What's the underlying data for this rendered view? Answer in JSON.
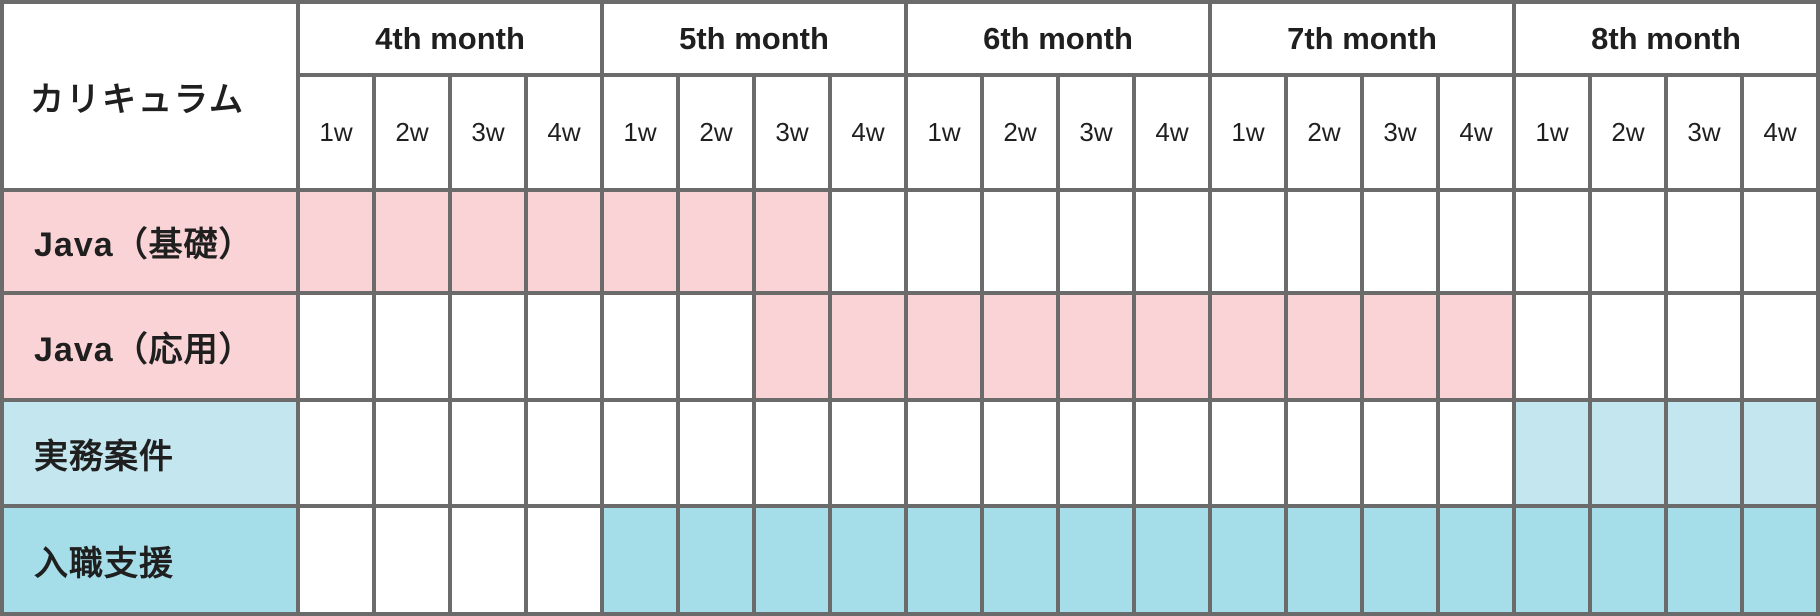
{
  "colors": {
    "pink": "#fad3d6",
    "light_blue": "#c3e6ef",
    "blue": "#a5dde9",
    "border": "#6b6b6b",
    "text": "#1f1f1f",
    "cell_bg": "#ffffff"
  },
  "chart_data": {
    "type": "table",
    "subtype": "gantt-schedule",
    "corner_label": "カリキュラム",
    "months": [
      "4th month",
      "5th month",
      "6th month",
      "7th month",
      "8th month"
    ],
    "week_labels": [
      "1w",
      "2w",
      "3w",
      "4w"
    ],
    "weeks_per_month": 4,
    "total_week_columns": 20,
    "rows": [
      {
        "key": "java-basic",
        "label": "Java（基礎）",
        "fill": "pink",
        "start": "4th month 1w",
        "end": "5th month 3w",
        "filled_weeks": [
          1,
          1,
          1,
          1,
          1,
          1,
          1,
          0,
          0,
          0,
          0,
          0,
          0,
          0,
          0,
          0,
          0,
          0,
          0,
          0
        ]
      },
      {
        "key": "java-advanced",
        "label": "Java（応用）",
        "fill": "pink",
        "start": "5th month 3w",
        "end": "7th month 4w",
        "filled_weeks": [
          0,
          0,
          0,
          0,
          0,
          0,
          1,
          1,
          1,
          1,
          1,
          1,
          1,
          1,
          1,
          1,
          0,
          0,
          0,
          0
        ]
      },
      {
        "key": "practical-projects",
        "label": "実務案件",
        "fill": "light_blue",
        "start": "8th month 1w",
        "end": "8th month 4w",
        "filled_weeks": [
          0,
          0,
          0,
          0,
          0,
          0,
          0,
          0,
          0,
          0,
          0,
          0,
          0,
          0,
          0,
          0,
          1,
          1,
          1,
          1
        ]
      },
      {
        "key": "job-entry-support",
        "label": "入職支援",
        "fill": "blue",
        "start": "5th month 1w",
        "end": "8th month 4w",
        "filled_weeks": [
          0,
          0,
          0,
          0,
          1,
          1,
          1,
          1,
          1,
          1,
          1,
          1,
          1,
          1,
          1,
          1,
          1,
          1,
          1,
          1
        ]
      }
    ]
  }
}
